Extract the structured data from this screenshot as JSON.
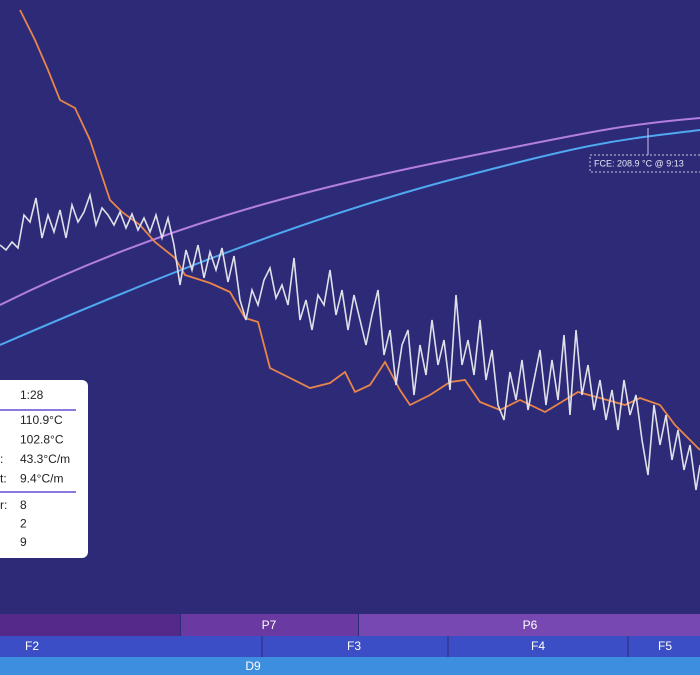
{
  "annotation": "FCE: 208.9 °C @ 9:13",
  "tooltip": {
    "time": "1:28",
    "readings": [
      {
        "value": "110.9°C"
      },
      {
        "value": "102.8°C"
      },
      {
        "label": ":",
        "value": "43.3°C/m"
      },
      {
        "label": "t:",
        "value": "9.4°C/m"
      }
    ],
    "counts": [
      {
        "label": "r:",
        "value": "8"
      },
      {
        "value": "2"
      },
      {
        "value": "9"
      }
    ]
  },
  "phase_bars": {
    "phases": [
      "P7",
      "P6"
    ],
    "stages": [
      "F2",
      "F3",
      "F4",
      "F5"
    ],
    "overall": "D9"
  }
}
